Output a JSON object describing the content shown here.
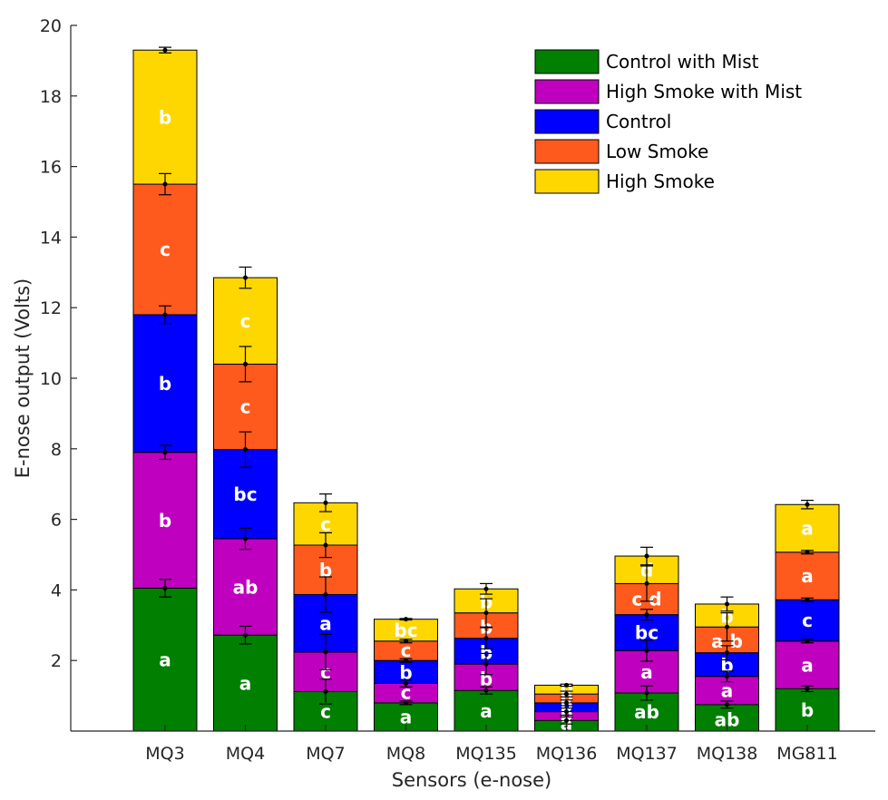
{
  "chart_data": {
    "type": "bar",
    "stacked": true,
    "title": "",
    "xlabel": "Sensors (e-nose)",
    "ylabel": "E-nose output (Volts)",
    "ylim": [
      0,
      20
    ],
    "yticks": [
      2,
      4,
      6,
      8,
      10,
      12,
      14,
      16,
      18,
      20
    ],
    "legend_position": "top-right",
    "grid": false,
    "categories": [
      "MQ3",
      "MQ4",
      "MQ7",
      "MQ8",
      "MQ135",
      "MQ136",
      "MQ137",
      "MQ138",
      "MG811"
    ],
    "series": [
      {
        "name": "Control with Mist",
        "color": "#007f00",
        "values": [
          4.05,
          2.72,
          1.12,
          0.8,
          1.15,
          0.3,
          1.08,
          0.75,
          1.2
        ],
        "errors": [
          0.25,
          0.25,
          0.35,
          0.05,
          0.1,
          0.1,
          0.2,
          0.1,
          0.08
        ],
        "letters": [
          "a",
          "a",
          "c",
          "a",
          "a",
          "a",
          "ab",
          "ab",
          "b"
        ]
      },
      {
        "name": "High Smoke with Mist",
        "color": "#bf00bf",
        "values": [
          3.85,
          2.73,
          1.12,
          0.55,
          0.75,
          0.25,
          1.2,
          0.8,
          1.35
        ],
        "errors": [
          0.2,
          0.3,
          0.5,
          0.1,
          0.3,
          0.1,
          0.3,
          0.15,
          0.05
        ],
        "letters": [
          "b",
          "ab",
          "c",
          "c",
          "b",
          "b",
          "a",
          "a",
          "a"
        ]
      },
      {
        "name": "Control",
        "color": "#0000ff",
        "values": [
          3.9,
          2.53,
          1.63,
          0.65,
          0.73,
          0.25,
          1.02,
          0.67,
          1.17
        ],
        "errors": [
          0.25,
          0.5,
          0.5,
          0.05,
          0.3,
          0.08,
          0.15,
          0.2,
          0.05
        ],
        "letters": [
          "b",
          "bc",
          "a",
          "b",
          "b",
          "b",
          "bc",
          "b",
          "c"
        ]
      },
      {
        "name": "Low Smoke",
        "color": "#ff5a1e",
        "values": [
          3.7,
          2.42,
          1.4,
          0.55,
          0.72,
          0.25,
          0.88,
          0.73,
          1.35
        ],
        "errors": [
          0.3,
          0.5,
          0.35,
          0.05,
          0.4,
          0.08,
          0.5,
          0.4,
          0.05
        ],
        "letters": [
          "c",
          "c",
          "b",
          "c",
          "b",
          "b",
          "c d",
          "a b",
          "a"
        ]
      },
      {
        "name": "High Smoke",
        "color": "#ffd700",
        "values": [
          3.8,
          2.45,
          1.2,
          0.62,
          0.68,
          0.25,
          0.78,
          0.65,
          1.35
        ],
        "errors": [
          0.08,
          0.3,
          0.25,
          0.02,
          0.15,
          0.03,
          0.25,
          0.2,
          0.12
        ],
        "letters": [
          "b",
          "c",
          "c",
          "bc",
          "b",
          "b",
          "d",
          "b",
          "a"
        ]
      }
    ]
  }
}
